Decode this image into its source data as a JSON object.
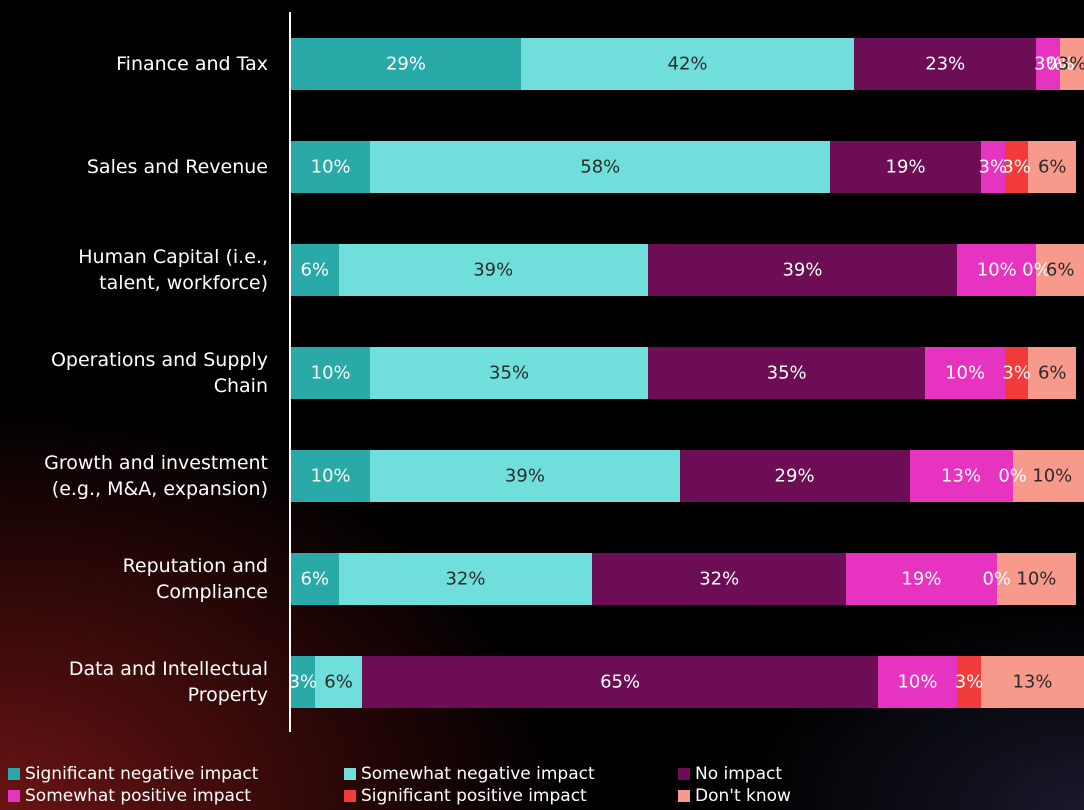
{
  "chart_data": {
    "type": "stacked-bar",
    "orientation": "horizontal",
    "categories": [
      "Finance and Tax",
      "Sales and Revenue",
      "Human Capital (i.e.,\ntalent, workforce)",
      "Operations and Supply\nChain",
      "Growth and investment\n(e.g., M&A, expansion)",
      "Reputation and\nCompliance",
      "Data and Intellectual\nProperty"
    ],
    "xlim": [
      0,
      100
    ],
    "series": [
      {
        "name": "Significant negative impact",
        "color": "#2aa9a9",
        "values": [
          29,
          10,
          6,
          10,
          10,
          6,
          3
        ],
        "value_labels": [
          "29%",
          "10%",
          "6%",
          "10%",
          "10%",
          "6%",
          "3%"
        ]
      },
      {
        "name": "Somewhat negative impact",
        "color": "#70dfdc",
        "values": [
          42,
          58,
          39,
          35,
          39,
          32,
          6
        ],
        "value_labels": [
          "42%",
          "58%",
          "39%",
          "35%",
          "39%",
          "32%",
          "6%"
        ]
      },
      {
        "name": "No impact",
        "color": "#6c0d55",
        "values": [
          23,
          19,
          39,
          35,
          29,
          32,
          65
        ],
        "value_labels": [
          "23%",
          "19%",
          "39%",
          "35%",
          "29%",
          "32%",
          "65%"
        ]
      },
      {
        "name": "Somewhat positive impact",
        "color": "#e634c1",
        "values": [
          3,
          3,
          10,
          10,
          13,
          19,
          10
        ],
        "value_labels": [
          "3%",
          "3%",
          "10%",
          "10%",
          "13%",
          "19%",
          "10%"
        ]
      },
      {
        "name": "Significant positive impact",
        "color": "#f23b3b",
        "values": [
          0,
          3,
          0,
          3,
          0,
          0,
          3
        ],
        "value_labels": [
          "0%",
          "3%",
          "0%",
          "3%",
          "0%",
          "0%",
          "3%"
        ]
      },
      {
        "name": "Don't know",
        "color": "#f89a8b",
        "values": [
          3,
          6,
          6,
          6,
          10,
          10,
          13
        ],
        "value_labels": [
          "3%",
          "6%",
          "6%",
          "6%",
          "10%",
          "10%",
          "13%"
        ]
      }
    ]
  }
}
